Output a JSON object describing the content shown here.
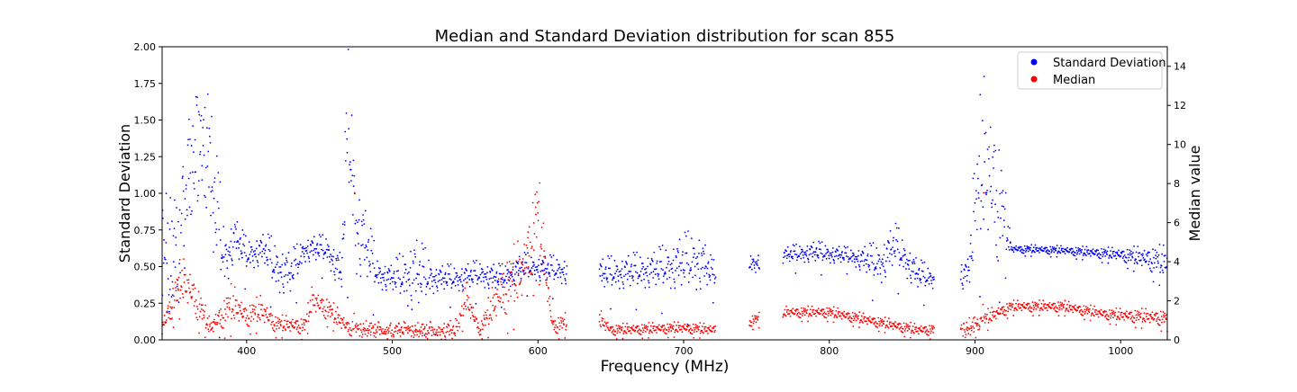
{
  "chart_data": {
    "type": "scatter",
    "title": "Median and Standard Deviation distribution for scan 855",
    "xlabel": "Frequency (MHz)",
    "ylabel": "Standard Deviation",
    "y2label": "Median value",
    "xlim": [
      342,
      1032
    ],
    "ylim": [
      0,
      2.0
    ],
    "y2lim": [
      0,
      15
    ],
    "x_ticks": [
      400,
      500,
      600,
      700,
      800,
      900,
      1000
    ],
    "y_ticks": [
      "0.00",
      "0.25",
      "0.50",
      "0.75",
      "1.00",
      "1.25",
      "1.50",
      "1.75",
      "2.00"
    ],
    "y2_ticks": [
      0,
      2,
      4,
      6,
      8,
      10,
      12,
      14
    ],
    "legend_position": "top-right",
    "grid": false,
    "series": [
      {
        "name": "Standard Deviation",
        "axis": "left",
        "color": "#0000ff",
        "profile": [
          [
            342,
            0.55,
            0.15
          ],
          [
            350,
            0.5,
            0.2
          ],
          [
            365,
            1.35,
            0.3
          ],
          [
            375,
            1.1,
            0.3
          ],
          [
            385,
            0.55,
            0.12
          ],
          [
            392,
            0.7,
            0.08
          ],
          [
            400,
            0.58,
            0.06
          ],
          [
            412,
            0.62,
            0.06
          ],
          [
            420,
            0.5,
            0.1
          ],
          [
            430,
            0.45,
            0.08
          ],
          [
            440,
            0.62,
            0.05
          ],
          [
            455,
            0.62,
            0.05
          ],
          [
            465,
            0.45,
            0.08
          ],
          [
            470,
            1.5,
            0.3
          ],
          [
            475,
            0.8,
            0.2
          ],
          [
            490,
            0.45,
            0.06
          ],
          [
            500,
            0.42,
            0.05
          ],
          [
            515,
            0.45,
            0.15
          ],
          [
            530,
            0.42,
            0.05
          ],
          [
            545,
            0.42,
            0.05
          ],
          [
            560,
            0.45,
            0.05
          ],
          [
            575,
            0.42,
            0.05
          ],
          [
            590,
            0.5,
            0.05
          ],
          [
            610,
            0.48,
            0.05
          ],
          [
            645,
            0.45,
            0.06
          ],
          [
            680,
            0.48,
            0.07
          ],
          [
            710,
            0.55,
            0.12
          ],
          [
            720,
            0.45,
            0.05
          ],
          [
            770,
            0.58,
            0.03
          ],
          [
            790,
            0.6,
            0.04
          ],
          [
            815,
            0.57,
            0.03
          ],
          [
            835,
            0.52,
            0.08
          ],
          [
            845,
            0.65,
            0.08
          ],
          [
            860,
            0.45,
            0.06
          ],
          [
            870,
            0.42,
            0.04
          ],
          [
            895,
            0.45,
            0.06
          ],
          [
            905,
            1.2,
            0.4
          ],
          [
            915,
            1.0,
            0.35
          ],
          [
            925,
            0.62,
            0.02
          ],
          [
            960,
            0.61,
            0.02
          ],
          [
            1000,
            0.58,
            0.03
          ],
          [
            1020,
            0.55,
            0.06
          ],
          [
            1032,
            0.52,
            0.08
          ]
        ]
      },
      {
        "name": "Median",
        "axis": "right",
        "color": "#ff0000",
        "profile": [
          [
            342,
            0.6,
            0.3
          ],
          [
            355,
            3.0,
            0.8
          ],
          [
            362,
            2.5,
            0.8
          ],
          [
            375,
            0.6,
            0.3
          ],
          [
            390,
            1.8,
            0.7
          ],
          [
            400,
            1.2,
            0.4
          ],
          [
            410,
            1.5,
            0.5
          ],
          [
            420,
            0.8,
            0.3
          ],
          [
            440,
            0.7,
            0.3
          ],
          [
            445,
            2.0,
            0.5
          ],
          [
            455,
            1.6,
            0.4
          ],
          [
            470,
            0.6,
            0.3
          ],
          [
            500,
            0.5,
            0.2
          ],
          [
            545,
            0.5,
            0.3
          ],
          [
            550,
            2.2,
            0.6
          ],
          [
            560,
            0.5,
            0.2
          ],
          [
            575,
            2.5,
            1.0
          ],
          [
            590,
            3.5,
            1.2
          ],
          [
            600,
            6.5,
            1.5
          ],
          [
            610,
            0.7,
            0.3
          ],
          [
            640,
            1.2,
            0.4
          ],
          [
            650,
            0.5,
            0.2
          ],
          [
            700,
            0.6,
            0.2
          ],
          [
            720,
            0.5,
            0.2
          ],
          [
            770,
            1.4,
            0.2
          ],
          [
            800,
            1.4,
            0.2
          ],
          [
            820,
            1.1,
            0.2
          ],
          [
            860,
            0.5,
            0.2
          ],
          [
            870,
            0.5,
            0.2
          ],
          [
            895,
            0.6,
            0.3
          ],
          [
            905,
            1.0,
            0.3
          ],
          [
            925,
            1.7,
            0.2
          ],
          [
            960,
            1.7,
            0.2
          ],
          [
            990,
            1.3,
            0.2
          ],
          [
            1032,
            1.1,
            0.3
          ]
        ]
      }
    ],
    "gaps_mhz": [
      [
        620,
        642
      ],
      [
        722,
        745
      ],
      [
        752,
        768
      ],
      [
        872,
        890
      ]
    ]
  }
}
